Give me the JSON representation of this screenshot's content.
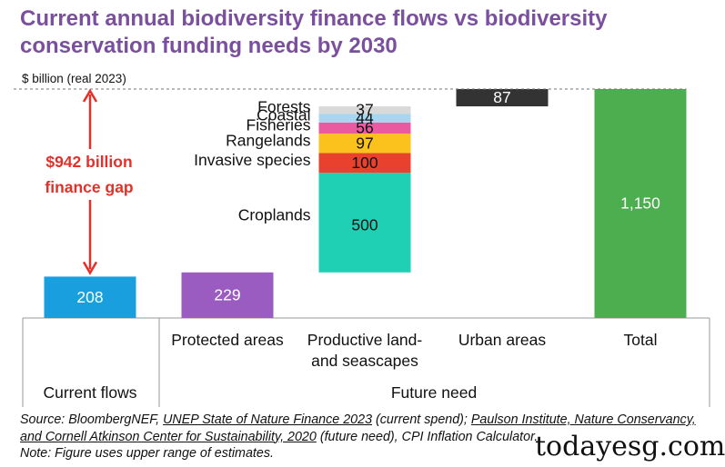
{
  "chart_data": {
    "type": "waterfall",
    "title": "Current annual biodiversity finance flows vs biodiversity conservation funding needs by 2030",
    "y_label": "$ billion (real 2023)",
    "categories": [
      "Current flows",
      "Protected areas",
      "Productive land- and seascapes",
      "Urban areas",
      "Total"
    ],
    "group_label": "Future need",
    "bars": [
      {
        "kind": "base",
        "segments": [
          {
            "value": 208,
            "color": "#1a9fde"
          }
        ]
      },
      {
        "kind": "step",
        "segments": [
          {
            "value": 229,
            "color": "#9b5cc2"
          }
        ]
      },
      {
        "kind": "step",
        "segments": [
          {
            "name": "Croplands",
            "value": 500,
            "color": "#1fd0b4"
          },
          {
            "name": "Invasive species",
            "value": 100,
            "color": "#e8412e"
          },
          {
            "name": "Rangelands",
            "value": 97,
            "color": "#fbc21d"
          },
          {
            "name": "Fisheries",
            "value": 56,
            "color": "#ea5aa0"
          },
          {
            "name": "Coastal",
            "value": 44,
            "color": "#a8d5f0"
          },
          {
            "name": "Forests",
            "value": 37,
            "color": "#d9d9d9"
          }
        ]
      },
      {
        "kind": "step",
        "segments": [
          {
            "value": 87,
            "color": "#333333"
          }
        ]
      },
      {
        "kind": "total",
        "segments": [
          {
            "value": 1150,
            "value_label": "1,150",
            "color": "#4cae4f"
          }
        ]
      }
    ],
    "ylim": [
      0,
      1150
    ],
    "annotation": "$942 billion finance gap",
    "annotation_color": "#e2302a",
    "source": [
      {
        "text": "Source: BloombergNEF, ",
        "underline": false
      },
      {
        "text": "UNEP State of Nature Finance 2023",
        "underline": true
      },
      {
        "text": " (current spend); ",
        "underline": false
      },
      {
        "text": "Paulson Institute, Nature Conservancy, and Cornell Atkinson Center for Sustainability, 2020",
        "underline": true
      },
      {
        "text": " (future need), CPI Inflation Calculator.",
        "underline": false
      }
    ],
    "note": "Note: Figure uses upper range of estimates.",
    "watermark": "todayesg.com"
  }
}
